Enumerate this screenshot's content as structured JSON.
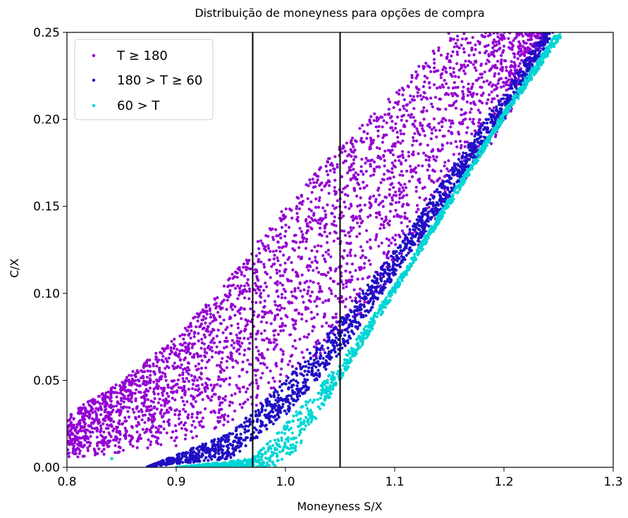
{
  "chart_data": {
    "type": "scatter",
    "title": "Distribuição de moneyness para opções de compra",
    "xlabel": "Moneyness S/X",
    "ylabel": "C/X",
    "xlim": [
      0.8,
      1.3
    ],
    "ylim": [
      0.0,
      0.25
    ],
    "xticks": [
      "0.8",
      "0.9",
      "1.0",
      "1.1",
      "1.2",
      "1.3"
    ],
    "yticks": [
      "0.00",
      "0.05",
      "0.10",
      "0.15",
      "0.20",
      "0.25"
    ],
    "grid": false,
    "legend_position": "top-left",
    "vertical_lines": [
      0.97,
      1.05
    ],
    "series": [
      {
        "name": "T ≥ 180",
        "color": "#9400d3",
        "lower_edge": [
          [
            0.8,
            0.005
          ],
          [
            0.9,
            0.012
          ],
          [
            0.95,
            0.025
          ],
          [
            1.0,
            0.045
          ],
          [
            1.05,
            0.075
          ],
          [
            1.1,
            0.11
          ],
          [
            1.15,
            0.15
          ],
          [
            1.2,
            0.195
          ],
          [
            1.24,
            0.25
          ]
        ],
        "upper_edge": [
          [
            0.8,
            0.03
          ],
          [
            0.85,
            0.05
          ],
          [
            0.9,
            0.075
          ],
          [
            0.95,
            0.11
          ],
          [
            1.0,
            0.15
          ],
          [
            1.05,
            0.185
          ],
          [
            1.1,
            0.215
          ],
          [
            1.15,
            0.25
          ]
        ]
      },
      {
        "name": "180 > T ≥ 60",
        "color": "#1f0fc4",
        "lower_edge": [
          [
            0.87,
            0.0
          ],
          [
            0.95,
            0.005
          ],
          [
            1.0,
            0.03
          ],
          [
            1.05,
            0.065
          ],
          [
            1.1,
            0.11
          ],
          [
            1.15,
            0.155
          ],
          [
            1.2,
            0.2
          ],
          [
            1.245,
            0.25
          ]
        ],
        "upper_edge": [
          [
            0.88,
            0.002
          ],
          [
            0.95,
            0.02
          ],
          [
            1.0,
            0.05
          ],
          [
            1.05,
            0.085
          ],
          [
            1.1,
            0.125
          ],
          [
            1.15,
            0.17
          ],
          [
            1.2,
            0.215
          ],
          [
            1.235,
            0.25
          ]
        ]
      },
      {
        "name": "60 > T",
        "color": "#00d5d5",
        "lower_edge": [
          [
            0.99,
            0.0
          ],
          [
            1.01,
            0.01
          ],
          [
            1.05,
            0.05
          ],
          [
            1.1,
            0.1
          ],
          [
            1.15,
            0.15
          ],
          [
            1.2,
            0.2
          ],
          [
            1.255,
            0.25
          ]
        ],
        "upper_edge": [
          [
            0.9,
            0.0
          ],
          [
            0.97,
            0.005
          ],
          [
            1.0,
            0.025
          ],
          [
            1.05,
            0.06
          ],
          [
            1.1,
            0.105
          ],
          [
            1.15,
            0.155
          ],
          [
            1.2,
            0.205
          ],
          [
            1.248,
            0.25
          ]
        ]
      }
    ],
    "outlier_points": [
      {
        "series": "60 > T",
        "x": 0.841,
        "y": 0.005
      }
    ]
  }
}
